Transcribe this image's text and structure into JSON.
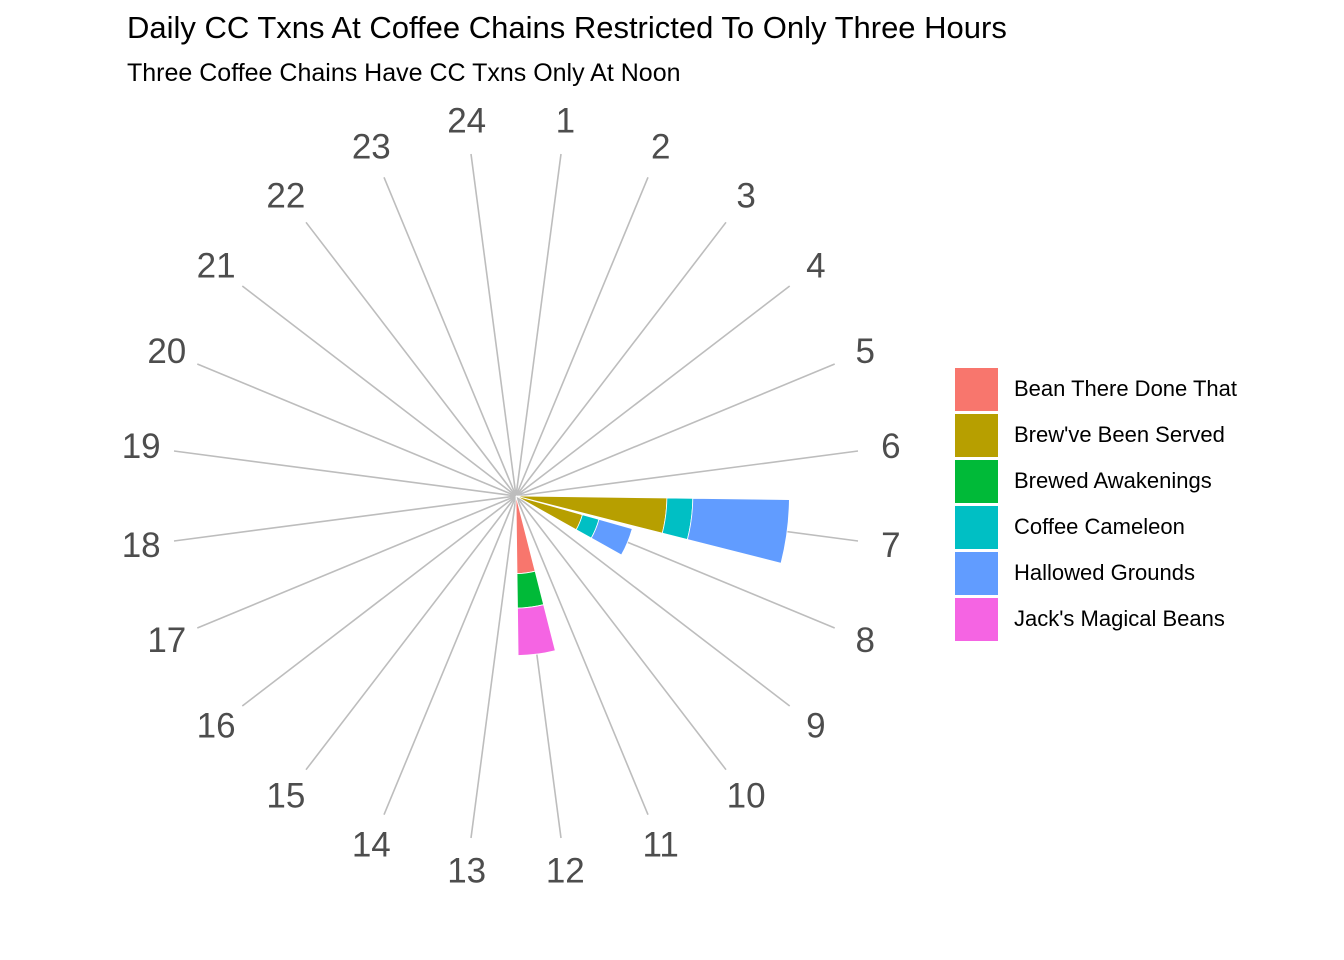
{
  "chart_data": {
    "type": "bar",
    "coord": "polar",
    "stacked": true,
    "title": "Daily CC Txns At Coffee Chains Restricted To Only Three Hours",
    "subtitle": "Three Coffee Chains Have CC Txns Only At Noon",
    "xlabel": "",
    "ylabel": "",
    "categories": [
      "1",
      "2",
      "3",
      "4",
      "5",
      "6",
      "7",
      "8",
      "9",
      "10",
      "11",
      "12",
      "13",
      "14",
      "15",
      "16",
      "17",
      "18",
      "19",
      "20",
      "21",
      "22",
      "23",
      "24"
    ],
    "series": [
      {
        "name": "Bean There Done That",
        "color": "#F8766D",
        "values": [
          0,
          0,
          0,
          0,
          0,
          0,
          0,
          0,
          0,
          0,
          0,
          90,
          0,
          0,
          0,
          0,
          0,
          0,
          0,
          0,
          0,
          0,
          0,
          0
        ]
      },
      {
        "name": "Brew've Been Served",
        "color": "#B79F00",
        "values": [
          0,
          0,
          0,
          0,
          0,
          0,
          175,
          80,
          0,
          0,
          0,
          0,
          0,
          0,
          0,
          0,
          0,
          0,
          0,
          0,
          0,
          0,
          0,
          0
        ]
      },
      {
        "name": "Brewed Awakenings",
        "color": "#00BA38",
        "values": [
          0,
          0,
          0,
          0,
          0,
          0,
          0,
          0,
          0,
          0,
          0,
          40,
          0,
          0,
          0,
          0,
          0,
          0,
          0,
          0,
          0,
          0,
          0,
          0
        ]
      },
      {
        "name": "Coffee Cameleon",
        "color": "#00BFC4",
        "values": [
          0,
          0,
          0,
          0,
          0,
          0,
          30,
          20,
          0,
          0,
          0,
          0,
          0,
          0,
          0,
          0,
          0,
          0,
          0,
          0,
          0,
          0,
          0,
          0
        ]
      },
      {
        "name": "Hallowed Grounds",
        "color": "#619CFF",
        "values": [
          0,
          0,
          0,
          0,
          0,
          0,
          112,
          40,
          0,
          0,
          0,
          0,
          0,
          0,
          0,
          0,
          0,
          0,
          0,
          0,
          0,
          0,
          0,
          0
        ]
      },
      {
        "name": "Jack's Magical Beans",
        "color": "#F564E3",
        "values": [
          0,
          0,
          0,
          0,
          0,
          0,
          0,
          0,
          0,
          0,
          0,
          55,
          0,
          0,
          0,
          0,
          0,
          0,
          0,
          0,
          0,
          0,
          0,
          0
        ]
      }
    ],
    "ylim": [
      0,
      400
    ],
    "legend_position": "right",
    "grid": true
  }
}
